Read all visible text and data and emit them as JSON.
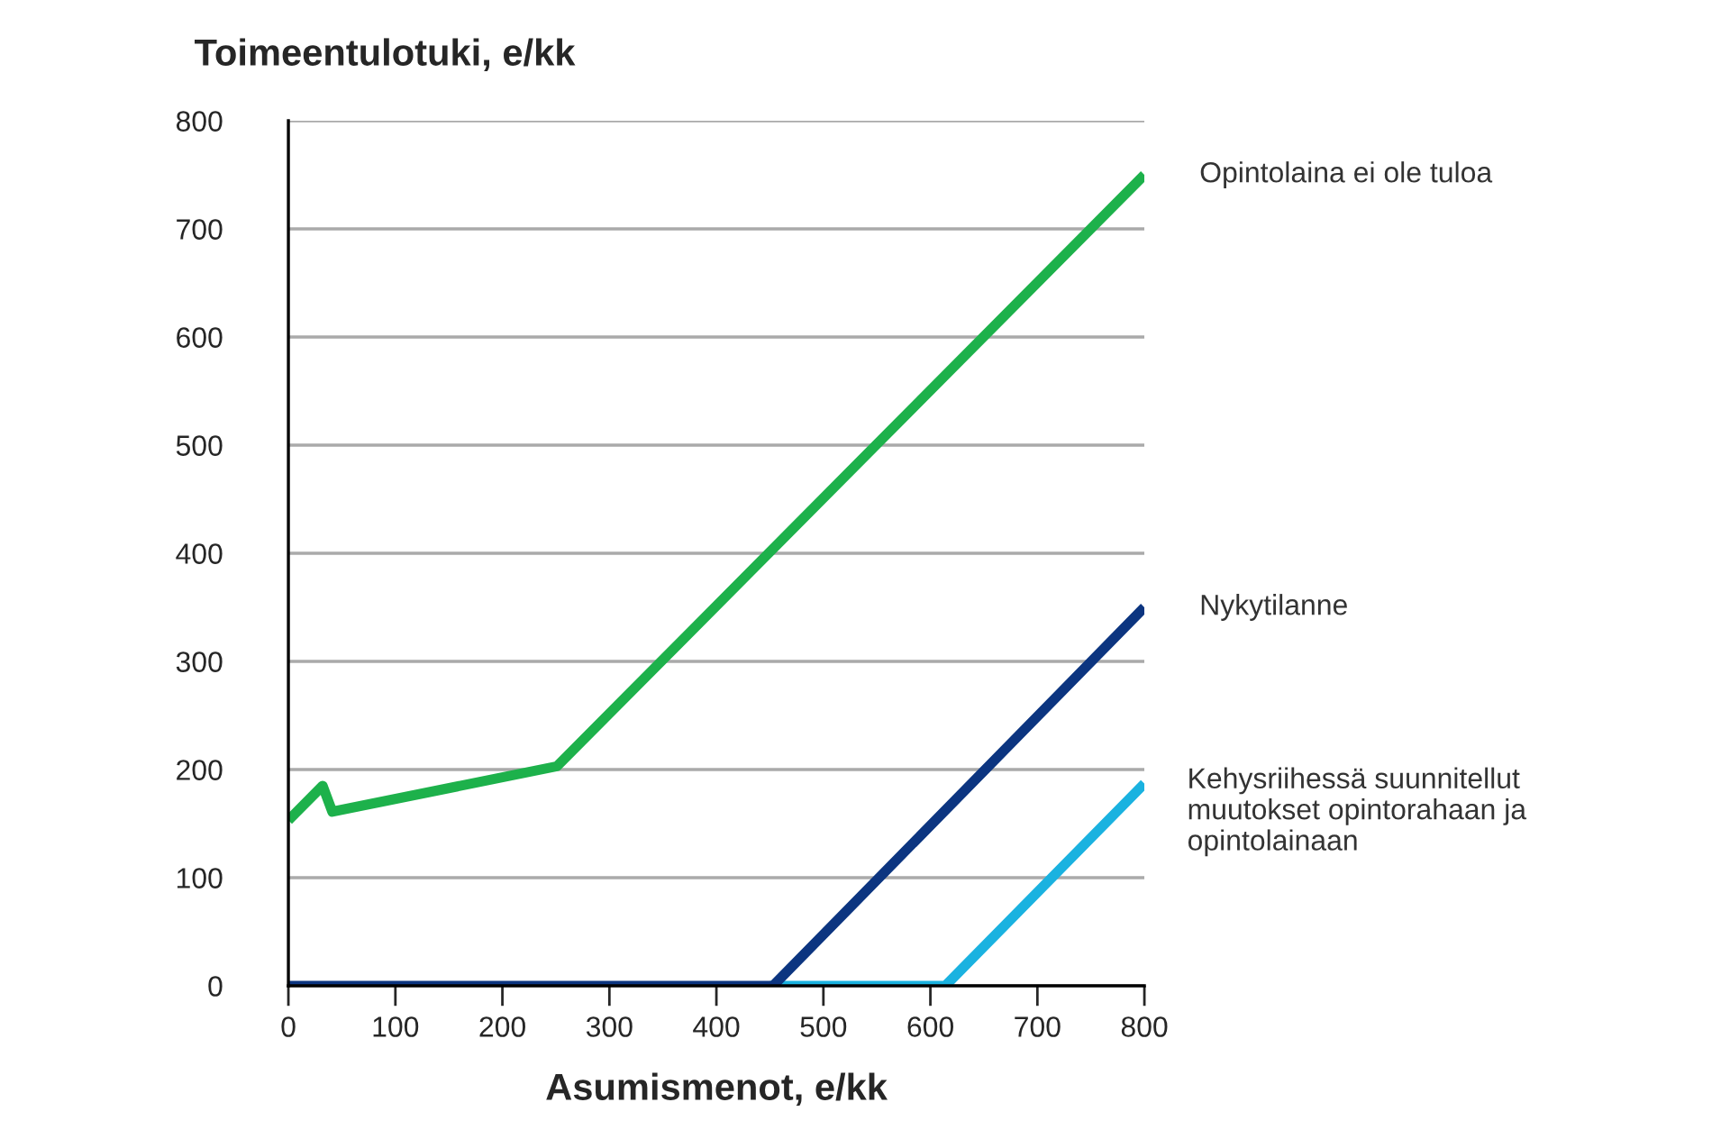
{
  "chart_data": {
    "type": "line",
    "xlabel": "Asumismenot, e/kk",
    "ylabel": "Toimeentulotuki, e/kk",
    "xlim": [
      0,
      800
    ],
    "ylim": [
      0,
      800
    ],
    "xticks": [
      0,
      100,
      200,
      300,
      400,
      500,
      600,
      700,
      800
    ],
    "yticks": [
      0,
      100,
      200,
      300,
      400,
      500,
      600,
      700,
      800
    ],
    "grid": "y",
    "marker": "none",
    "line_style": "solid",
    "series": [
      {
        "name": "Opintolaina ei ole tuloa",
        "color": "#1db14b",
        "x": [
          0,
          32,
          41,
          251,
          800
        ],
        "values": [
          153,
          185,
          161,
          203,
          750
        ]
      },
      {
        "name": "Kehysriihessä suunnitellut muutokset opintorahaan ja opintolainaan",
        "color": "#1ab2e0",
        "x": [
          450,
          614,
          800
        ],
        "values": [
          0,
          0,
          187
        ]
      },
      {
        "name": "Nykytilanne",
        "color": "#0c3580",
        "x": [
          0,
          453,
          800
        ],
        "values": [
          0,
          0,
          350
        ]
      }
    ]
  }
}
